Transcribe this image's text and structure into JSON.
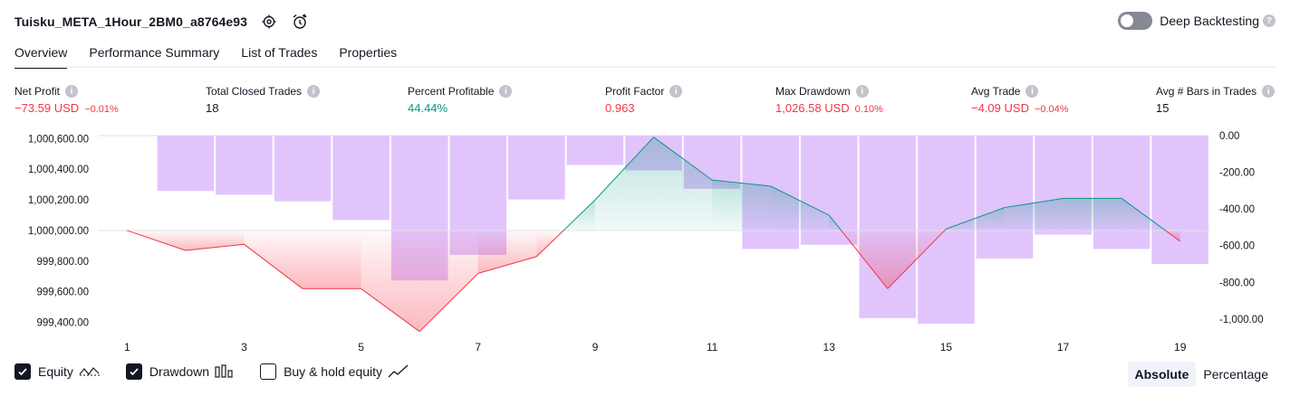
{
  "header": {
    "title": "Tuisku_META_1Hour_2BM0_a8764e93",
    "settings_icon": "gear-icon",
    "alert_icon": "add-alert-icon"
  },
  "deep_backtesting": {
    "label": "Deep Backtesting",
    "enabled": false
  },
  "tabs": [
    {
      "label": "Overview",
      "active": true
    },
    {
      "label": "Performance Summary",
      "active": false
    },
    {
      "label": "List of Trades",
      "active": false
    },
    {
      "label": "Properties",
      "active": false
    }
  ],
  "metrics": [
    {
      "label": "Net Profit",
      "value": "−73.59 USD",
      "pct": "−0.01%",
      "color": "#f23645"
    },
    {
      "label": "Total Closed Trades",
      "value": "18",
      "pct": "",
      "color": "#131722"
    },
    {
      "label": "Percent Profitable",
      "value": "44.44%",
      "pct": "",
      "color": "#089981"
    },
    {
      "label": "Profit Factor",
      "value": "0.963",
      "pct": "",
      "color": "#f23645"
    },
    {
      "label": "Max Drawdown",
      "value": "1,026.58 USD",
      "pct": "0.10%",
      "color": "#f23645"
    },
    {
      "label": "Avg Trade",
      "value": "−4.09 USD",
      "pct": "−0.04%",
      "color": "#f23645"
    },
    {
      "label": "Avg # Bars in Trades",
      "value": "15",
      "pct": "",
      "color": "#131722"
    }
  ],
  "chart_data": {
    "type": "line",
    "x_ticks": [
      "1",
      "3",
      "5",
      "7",
      "9",
      "11",
      "13",
      "15",
      "17",
      "19"
    ],
    "left_axis_ticks": [
      "1,000,600.00",
      "1,000,400.00",
      "1,000,200.00",
      "1,000,000.00",
      "999,800.00",
      "999,600.00",
      "999,400.00"
    ],
    "right_axis_ticks": [
      "0.00",
      "-200.00",
      "-400.00",
      "-600.00",
      "-800.00",
      "-1,000.00"
    ],
    "equity_ylim": [
      999350,
      1000620
    ],
    "drawdown_ylim": [
      -1050,
      0
    ],
    "baseline": 1000000,
    "series": [
      {
        "name": "Equity",
        "x": [
          1,
          2,
          3,
          4,
          5,
          6,
          7,
          8,
          9,
          10,
          11,
          12,
          13,
          14,
          15,
          16,
          17,
          18,
          19
        ],
        "values": [
          1000000,
          999870,
          999910,
          999620,
          999620,
          999340,
          999720,
          999830,
          1000200,
          1000610,
          1000330,
          1000290,
          1000100,
          999620,
          1000010,
          1000150,
          1000210,
          1000210,
          999930
        ],
        "colors": {
          "up": "#089981",
          "down": "#f23645"
        }
      },
      {
        "name": "Drawdown",
        "x": [
          1,
          2,
          3,
          4,
          5,
          6,
          7,
          8,
          9,
          10,
          11,
          12,
          13,
          14,
          15,
          16,
          17,
          18,
          19
        ],
        "values": [
          0,
          -302,
          -322,
          -358,
          -460,
          -790,
          -650,
          -348,
          -160,
          -190,
          -290,
          -618,
          -595,
          -995,
          -1026,
          -670,
          -540,
          -618,
          -700
        ],
        "color": "#e1c4fc"
      }
    ]
  },
  "legend": [
    {
      "label": "Equity",
      "checked": true
    },
    {
      "label": "Drawdown",
      "checked": true
    },
    {
      "label": "Buy & hold equity",
      "checked": false
    }
  ],
  "view_mode": {
    "options": [
      "Absolute",
      "Percentage"
    ],
    "selected": "Absolute"
  }
}
